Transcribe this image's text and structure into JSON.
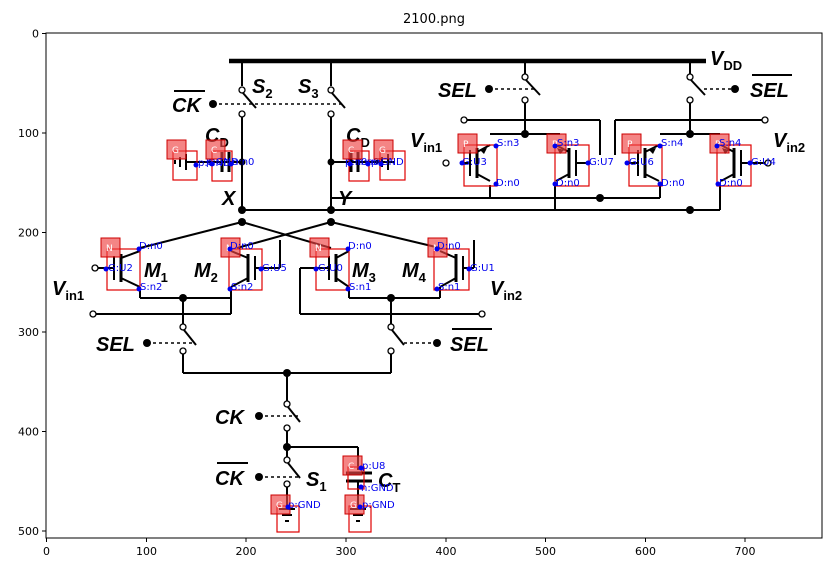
{
  "title": "2100.png",
  "axes": {
    "x_ticks": [
      "0",
      "100",
      "200",
      "300",
      "400",
      "500",
      "600",
      "700"
    ],
    "y_ticks": [
      "0",
      "100",
      "200",
      "300",
      "400",
      "500"
    ]
  },
  "labels": {
    "vdd": "V",
    "vdd_sub": "DD",
    "sel": "SEL",
    "sel_bar": "SEL",
    "ck": "CK",
    "ck_bar": "CK",
    "s1": "S",
    "s1_sub": "1",
    "s2": "S",
    "s2_sub": "2",
    "s3": "S",
    "s3_sub": "3",
    "cd": "C",
    "cd_sub": "D",
    "ct": "C",
    "ct_sub": "T",
    "x": "X",
    "y": "Y",
    "vin1": "V",
    "vin1_sub": "in1",
    "vin2": "V",
    "vin2_sub": "in2",
    "m1": "M",
    "m1_sub": "1",
    "m2": "M",
    "m2_sub": "2",
    "m3": "M",
    "m3_sub": "3",
    "m4": "M",
    "m4_sub": "4"
  },
  "annotations": {
    "g1": {
      "tag": "G",
      "pin": "p:GND"
    },
    "c1": {
      "tag": "C",
      "p1": "p:GND",
      "p2": "n:n0"
    },
    "c2": {
      "tag": "C",
      "p1": "p:n0",
      "p2": "n:n0"
    },
    "g2": {
      "tag": "G",
      "pin": "p:GND"
    },
    "p1": {
      "tag": "P",
      "s": "S:n3",
      "g": "G:U3",
      "d": "D:n0"
    },
    "p2": {
      "tag": "P",
      "s": "S:n3",
      "g": "G:U7",
      "d": "D:n0"
    },
    "p3": {
      "tag": "P",
      "s": "S:n4",
      "g": "G:U6",
      "d": "D:n0"
    },
    "p4": {
      "tag": "P",
      "s": "S:n4",
      "g": "G:U4",
      "d": "D:n0"
    },
    "n1": {
      "tag": "N",
      "d": "D:n0",
      "g": "G:U2",
      "s": "S:n2"
    },
    "n2": {
      "tag": "N",
      "d": "D:n0",
      "g": "G:U5",
      "s": "S:n2"
    },
    "n3": {
      "tag": "N",
      "d": "D:n0",
      "g": "G:U0",
      "s": "S:n1"
    },
    "n4": {
      "tag": "N",
      "d": "D:n0",
      "g": "G:U1",
      "s": "S:n1"
    },
    "ct": {
      "tag": "C",
      "p": "p:U8",
      "n": "n:GND"
    },
    "g3": {
      "tag": "G",
      "pin": "p:GND"
    },
    "g4": {
      "tag": "G",
      "pin": "p:GND"
    }
  }
}
